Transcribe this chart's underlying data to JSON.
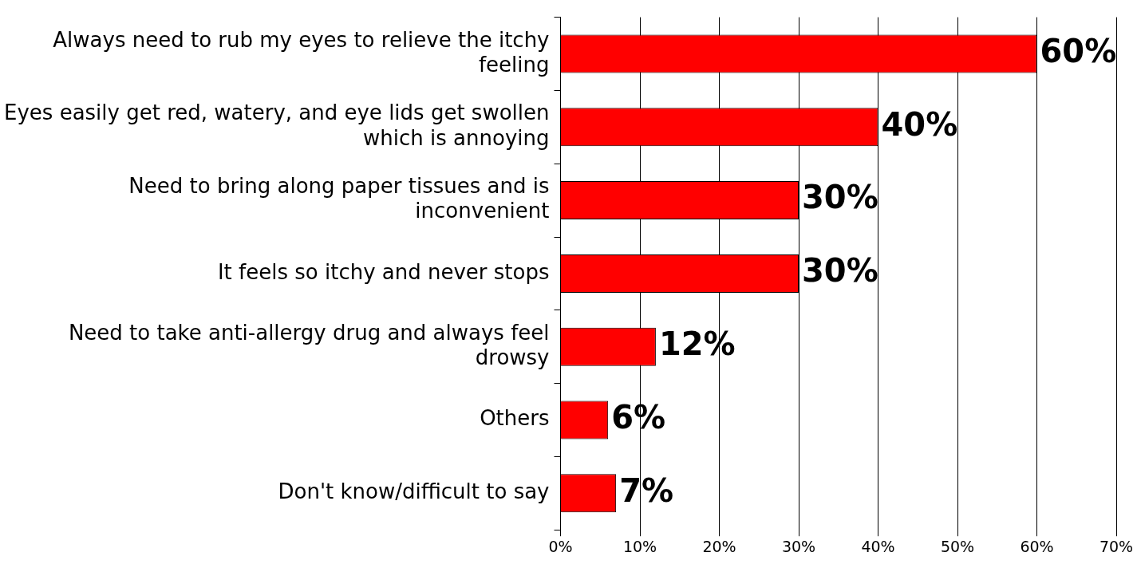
{
  "chart_data": {
    "type": "bar",
    "orientation": "horizontal",
    "categories": [
      "Always need to rub my eyes to relieve the itchy feeling",
      "Eyes easily get red, watery, and eye lids get swollen which is annoying",
      "Need to bring along paper tissues and is inconvenient",
      "It feels so itchy and never stops",
      "Need to take anti-allergy drug and always feel drowsy",
      "Others",
      "Don't know/difficult to say"
    ],
    "values": [
      60,
      40,
      30,
      30,
      12,
      6,
      7
    ],
    "value_labels": [
      "60%",
      "40%",
      "30%",
      "30%",
      "12%",
      "6%",
      "7%"
    ],
    "color": "#ff0000",
    "xlim": [
      0,
      70
    ],
    "xticks": [
      {
        "value": 0,
        "label": "0%"
      },
      {
        "value": 10,
        "label": "10%"
      },
      {
        "value": 20,
        "label": "20%"
      },
      {
        "value": 30,
        "label": "30%"
      },
      {
        "value": 40,
        "label": "40%"
      },
      {
        "value": 50,
        "label": "50%"
      },
      {
        "value": 60,
        "label": "60%"
      },
      {
        "value": 70,
        "label": "70%"
      }
    ],
    "grid": "x"
  }
}
